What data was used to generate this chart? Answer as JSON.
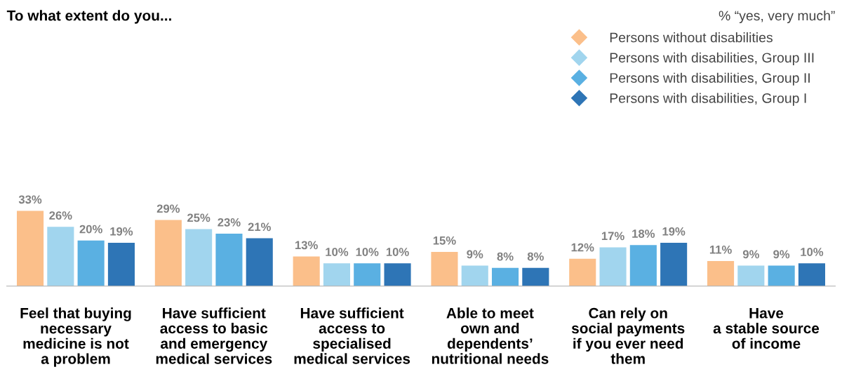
{
  "chart_data": {
    "type": "bar",
    "title": "To what extent do you...",
    "subtitle": "% “yes, very much”",
    "categories": [
      "Feel that buying\nnecessary\nmedicine is not\na problem",
      "Have sufficient\naccess to basic\nand emergency\nmedical services",
      "Have sufficient\naccess to\nspecialised\nmedical services",
      "Able to meet\nown and\ndependents’\nnutritional needs",
      "Can rely on\nsocial payments\nif you ever need\nthem",
      "Have\na stable source\nof income"
    ],
    "series": [
      {
        "name": "Persons without disabilities",
        "color": "#fbbf8a",
        "values": [
          33,
          29,
          13,
          15,
          12,
          11
        ],
        "value_labels": [
          "33%",
          "29%",
          "13%",
          "15%",
          "12%",
          "11%"
        ]
      },
      {
        "name": "Persons with disabilities, Group III",
        "color": "#a1d5ee",
        "values": [
          26,
          25,
          10,
          9,
          17,
          9
        ],
        "value_labels": [
          "26%",
          "25%",
          "10%",
          "9%",
          "17%",
          "9%"
        ]
      },
      {
        "name": "Persons with disabilities, Group II",
        "color": "#5ab0e2",
        "values": [
          20,
          23,
          10,
          8,
          18,
          9
        ],
        "value_labels": [
          "20%",
          "23%",
          "10%",
          "8%",
          "18%",
          "9%"
        ]
      },
      {
        "name": "Persons with disabilities, Group I",
        "color": "#2e75b6",
        "values": [
          19,
          21,
          10,
          8,
          19,
          10
        ],
        "value_labels": [
          "19%",
          "21%",
          "10%",
          "8%",
          "19%",
          "10%"
        ]
      }
    ],
    "tick_labels": "x",
    "legend": "top right",
    "marker": "diamond",
    "grid": false
  }
}
